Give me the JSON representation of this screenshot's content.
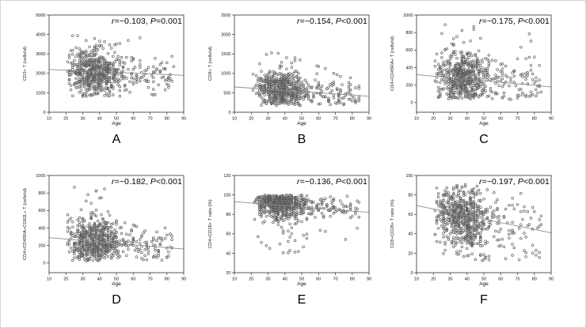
{
  "figure": {
    "description": "Six scatter plots (A-F) of T-cell subset measures versus Age with negative correlation trend lines",
    "xlabel_shared": "Age"
  },
  "colors": {
    "background": "#ffffff",
    "axis": "#2e2e2e",
    "tick_text": "#111111",
    "point_stroke": "#5f5f5f",
    "trend": "#8c8c8c",
    "annotation_text": "#000000"
  },
  "chart_data": [
    {
      "type": "scatter",
      "letter": "A",
      "xlabel": "Age",
      "ylabel": "CD3+ T (cells/ul)",
      "xlim": [
        10,
        90
      ],
      "xticks": [
        10,
        20,
        30,
        40,
        50,
        60,
        70,
        80,
        90
      ],
      "ylim": [
        0,
        5000
      ],
      "yticks": [
        0,
        1000,
        2000,
        3000,
        4000,
        5000
      ],
      "annotation": {
        "r_label": "r",
        "r_text": "=−0.103, ",
        "p_label": "P",
        "p_text": "=0.001"
      },
      "trendline": {
        "x": [
          10,
          90
        ],
        "y": [
          2200,
          1900
        ]
      },
      "scatter": {
        "n": 680,
        "seed": 11,
        "y_sd": 580,
        "y_off": -60,
        "y_clip": [
          780,
          4150
        ],
        "tail_frac": 0.012,
        "tail_range": [
          3400,
          4100
        ],
        "x": {
          "mean": 37.5,
          "sd": 8.5,
          "range": [
            21,
            60
          ],
          "old_frac": 0.11,
          "old_range": [
            58,
            84
          ]
        }
      }
    },
    {
      "type": "scatter",
      "letter": "B",
      "xlabel": "Age",
      "ylabel": "CD8+ T (cells/ul)",
      "xlim": [
        10,
        90
      ],
      "xticks": [
        10,
        20,
        30,
        40,
        50,
        60,
        70,
        80,
        90
      ],
      "ylim": [
        0,
        2500
      ],
      "yticks": [
        0,
        500,
        1000,
        1500,
        2000,
        2500
      ],
      "annotation": {
        "r_label": "r",
        "r_text": "=−0.154, ",
        "p_label": "P",
        "p_text": "<0.001"
      },
      "trendline": {
        "x": [
          10,
          90
        ],
        "y": [
          650,
          410
        ]
      },
      "scatter": {
        "n": 680,
        "seed": 22,
        "y_sd": 240,
        "y_off": -10,
        "y_clip": [
          170,
          1560
        ],
        "tail_frac": 0.02,
        "tail_range": [
          1150,
          1560
        ],
        "x": {
          "mean": 37.5,
          "sd": 8.5,
          "range": [
            21,
            60
          ],
          "old_frac": 0.11,
          "old_range": [
            58,
            84
          ]
        }
      }
    },
    {
      "type": "scatter",
      "letter": "C",
      "xlabel": "Age",
      "ylabel": "CD4+CD45RA+ T (cells/ul)",
      "xlim": [
        10,
        90
      ],
      "xticks": [
        10,
        20,
        30,
        40,
        50,
        60,
        70,
        80,
        90
      ],
      "ylim": [
        -110,
        1000
      ],
      "yticks": [
        0,
        200,
        400,
        600,
        800,
        1000
      ],
      "annotation": {
        "r_label": "r",
        "r_text": "=−0.175, ",
        "p_label": "P",
        "p_text": "<0.001"
      },
      "trendline": {
        "x": [
          10,
          90
        ],
        "y": [
          320,
          180
        ]
      },
      "scatter": {
        "n": 680,
        "seed": 33,
        "y_sd": 150,
        "y_off": 0,
        "y_clip": [
          35,
          930
        ],
        "tail_frac": 0.012,
        "tail_range": [
          700,
          920
        ],
        "x": {
          "mean": 37.5,
          "sd": 8.5,
          "range": [
            21,
            60
          ],
          "old_frac": 0.11,
          "old_range": [
            58,
            84
          ]
        }
      }
    },
    {
      "type": "scatter",
      "letter": "D",
      "xlabel": "Age",
      "ylabel": "CD4+CD45RA+CD62L+ T (cells/ul)",
      "xlim": [
        10,
        90
      ],
      "xticks": [
        10,
        20,
        30,
        40,
        50,
        60,
        70,
        80,
        90
      ],
      "ylim": [
        -110,
        1000
      ],
      "yticks": [
        0,
        200,
        400,
        600,
        800,
        1000
      ],
      "annotation": {
        "r_label": "r",
        "r_text": "=−0.182, ",
        "p_label": "P",
        "p_text": "<0.001"
      },
      "trendline": {
        "x": [
          10,
          90
        ],
        "y": [
          290,
          160
        ]
      },
      "scatter": {
        "n": 680,
        "seed": 44,
        "y_sd": 138,
        "y_off": -15,
        "y_clip": [
          25,
          880
        ],
        "tail_frac": 0.01,
        "tail_range": [
          650,
          870
        ],
        "x": {
          "mean": 37.5,
          "sd": 8.5,
          "range": [
            21,
            60
          ],
          "old_frac": 0.11,
          "old_range": [
            58,
            84
          ]
        }
      }
    },
    {
      "type": "scatter",
      "letter": "E",
      "xlabel": "Age",
      "ylabel": "CD4+CD28+ T ratio (%)",
      "xlim": [
        10,
        90
      ],
      "xticks": [
        10,
        20,
        30,
        40,
        50,
        60,
        70,
        80,
        90
      ],
      "ylim": [
        20,
        120
      ],
      "yticks": [
        20,
        40,
        60,
        80,
        100,
        120
      ],
      "annotation": {
        "r_label": "r",
        "r_text": "=−0.136, ",
        "p_label": "P",
        "p_text": "<0.001"
      },
      "trendline": {
        "x": [
          10,
          90
        ],
        "y": [
          93,
          82
        ]
      },
      "scatter": {
        "n": 680,
        "seed": 55,
        "y_sd": 7.5,
        "y_off": 3,
        "y_clip": [
          26,
          100
        ],
        "tail_frac": 0.045,
        "tail_range": [
          40,
          76
        ],
        "x": {
          "mean": 37.5,
          "sd": 8.5,
          "range": [
            21,
            60
          ],
          "old_frac": 0.11,
          "old_range": [
            58,
            84
          ]
        }
      }
    },
    {
      "type": "scatter",
      "letter": "F",
      "xlabel": "Age",
      "ylabel": "CD8+CD28+ T ratio (%)",
      "xlim": [
        10,
        90
      ],
      "xticks": [
        10,
        20,
        30,
        40,
        50,
        60,
        70,
        80,
        90
      ],
      "ylim": [
        0,
        100
      ],
      "yticks": [
        0,
        20,
        40,
        60,
        80,
        100
      ],
      "annotation": {
        "r_label": "r",
        "r_text": "=−0.197, ",
        "p_label": "P",
        "p_text": "<0.001"
      },
      "trendline": {
        "x": [
          10,
          90
        ],
        "y": [
          69,
          41
        ]
      },
      "scatter": {
        "n": 680,
        "seed": 66,
        "y_sd": 16,
        "y_off": -3,
        "y_clip": [
          12,
          91
        ],
        "tail_frac": 0.012,
        "tail_range": [
          13,
          25
        ],
        "x": {
          "mean": 37.5,
          "sd": 8.5,
          "range": [
            21,
            60
          ],
          "old_frac": 0.11,
          "old_range": [
            58,
            84
          ]
        }
      }
    }
  ]
}
